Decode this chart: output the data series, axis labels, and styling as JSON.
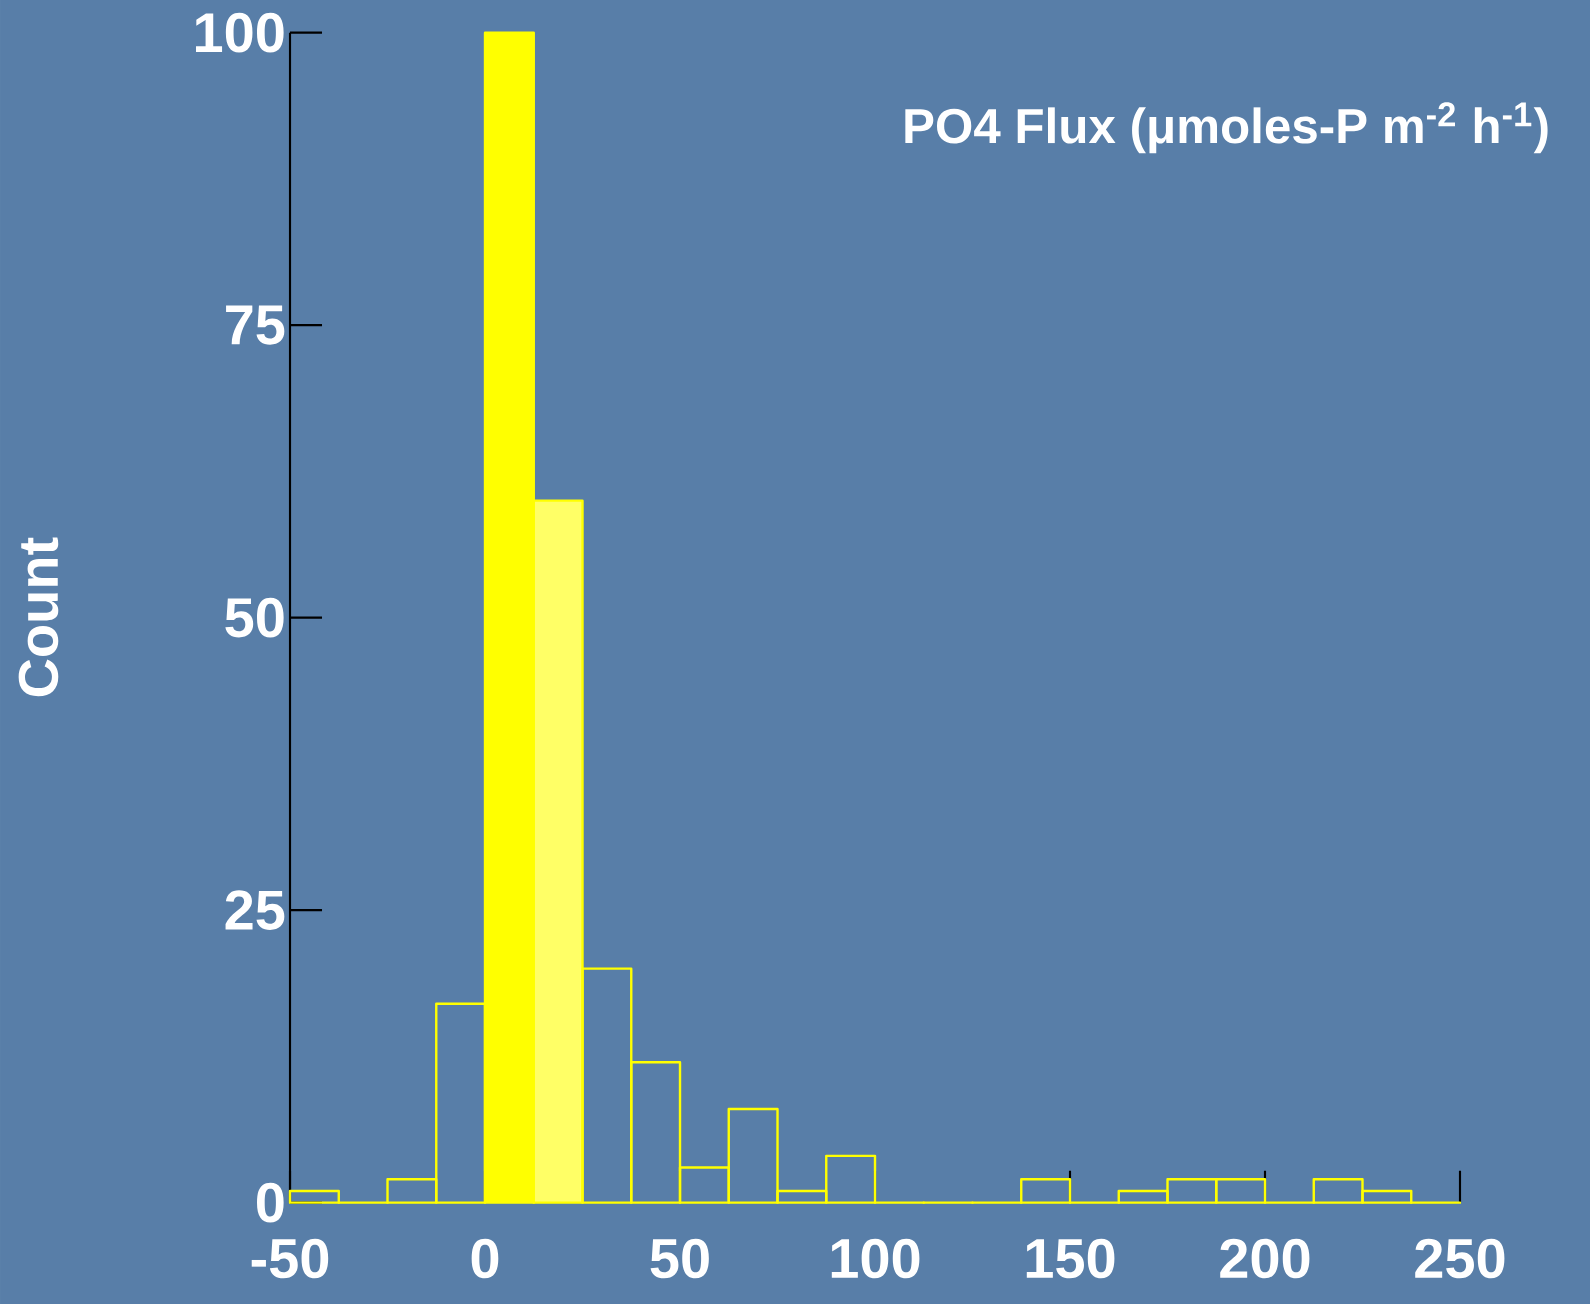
{
  "chart_data": {
    "type": "histogram",
    "title": "PO4 Flux (μmoles-P m$^{-2}$ h$^{-1}$)",
    "ylabel": "Count",
    "bins": [
      -50,
      -37.5,
      -25,
      -12.5,
      0,
      12.5,
      25,
      37.5,
      50,
      62.5,
      75,
      87.5,
      100,
      112.5,
      125,
      137.5,
      150,
      162.5,
      175,
      187.5,
      200,
      212.5,
      225,
      237.5,
      250
    ],
    "values": [
      1,
      0,
      2,
      17,
      100,
      60,
      20,
      12,
      3,
      8,
      1,
      4,
      0,
      0,
      0,
      2,
      0,
      1,
      2,
      2,
      0,
      2,
      1,
      0
    ],
    "color": "#ffff00",
    "colors": [
      null,
      null,
      null,
      null,
      "#ffff00",
      "#ffff66",
      null,
      null,
      null,
      null,
      null,
      null,
      null,
      null,
      null,
      null,
      null,
      null,
      null,
      null,
      null,
      null,
      null,
      null
    ],
    "xlim": [
      -50,
      250
    ],
    "xticks": [
      -50,
      0,
      50,
      100,
      150,
      200,
      250
    ],
    "ylim": [
      0,
      100
    ],
    "yticks": [
      0,
      25,
      50,
      75,
      100
    ]
  }
}
